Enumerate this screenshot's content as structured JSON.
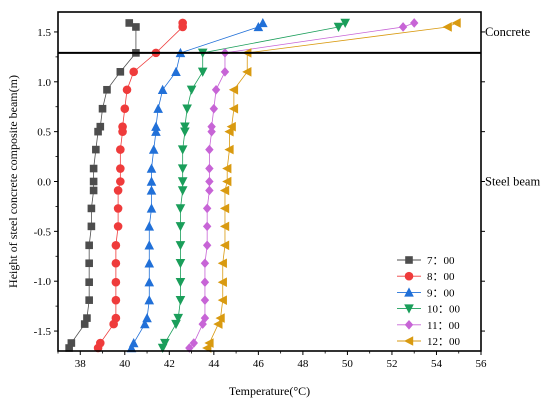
{
  "chart_data": {
    "type": "line",
    "xlabel": "Temperature(°C)",
    "ylabel": "Height of steel concrete composite beam(m)",
    "xlim": [
      37,
      56
    ],
    "ylim": [
      -1.7,
      1.7
    ],
    "xticks": [
      38,
      40,
      42,
      44,
      46,
      48,
      50,
      52,
      54,
      56
    ],
    "yticks": [
      -1.5,
      -1.0,
      -0.5,
      0.0,
      0.5,
      1.0,
      1.5
    ],
    "grid": false,
    "legend_position": "bottom-right",
    "annotations": [
      {
        "text": "Concrete",
        "y": 1.5
      },
      {
        "text": "Steel beam",
        "y": 0.0
      }
    ],
    "interface_line_y": 1.29,
    "heights": [
      1.59,
      1.55,
      1.29,
      1.1,
      0.92,
      0.73,
      0.55,
      0.5,
      0.32,
      0.13,
      0.0,
      -0.09,
      -0.27,
      -0.45,
      -0.64,
      -0.82,
      -1.01,
      -1.19,
      -1.37,
      -1.43,
      -1.62,
      -1.67
    ],
    "series": [
      {
        "name": "7：00",
        "marker": "square",
        "color": "#4d4d4d",
        "values": [
          40.2,
          40.5,
          40.5,
          39.8,
          39.2,
          39.0,
          38.9,
          38.8,
          38.7,
          38.6,
          38.6,
          38.6,
          38.5,
          38.5,
          38.4,
          38.4,
          38.4,
          38.4,
          38.3,
          38.2,
          37.6,
          37.5
        ]
      },
      {
        "name": "8：00",
        "marker": "circle",
        "color": "#ef3b3b",
        "values": [
          42.6,
          42.6,
          41.4,
          40.4,
          40.1,
          40.0,
          39.9,
          39.9,
          39.8,
          39.8,
          39.8,
          39.7,
          39.7,
          39.7,
          39.6,
          39.6,
          39.6,
          39.6,
          39.6,
          39.5,
          38.9,
          38.8
        ]
      },
      {
        "name": "9：00",
        "marker": "triangle-up",
        "color": "#2170d8",
        "values": [
          46.2,
          46.0,
          42.5,
          42.3,
          41.7,
          41.5,
          41.4,
          41.4,
          41.3,
          41.2,
          41.2,
          41.2,
          41.2,
          41.1,
          41.1,
          41.1,
          41.1,
          41.1,
          41.0,
          40.9,
          40.4,
          40.3
        ]
      },
      {
        "name": "10：00",
        "marker": "triangle-down",
        "color": "#1a9e5a",
        "values": [
          49.9,
          49.6,
          43.5,
          43.5,
          43.0,
          42.8,
          42.7,
          42.7,
          42.6,
          42.6,
          42.6,
          42.6,
          42.5,
          42.5,
          42.5,
          42.5,
          42.5,
          42.5,
          42.4,
          42.3,
          41.8,
          41.7
        ]
      },
      {
        "name": "11：00",
        "marker": "diamond",
        "color": "#c764d6",
        "values": [
          53.0,
          52.5,
          44.5,
          44.5,
          44.1,
          44.0,
          43.9,
          43.9,
          43.8,
          43.8,
          43.8,
          43.8,
          43.7,
          43.7,
          43.7,
          43.6,
          43.6,
          43.6,
          43.6,
          43.5,
          43.1,
          42.9
        ]
      },
      {
        "name": "12：00",
        "marker": "triangle-left",
        "color": "#d99a10",
        "values": [
          54.9,
          54.5,
          45.5,
          45.5,
          44.9,
          44.9,
          44.8,
          44.7,
          44.7,
          44.6,
          44.6,
          44.5,
          44.5,
          44.5,
          44.5,
          44.4,
          44.4,
          44.4,
          44.3,
          44.2,
          43.8,
          43.7
        ]
      }
    ]
  }
}
